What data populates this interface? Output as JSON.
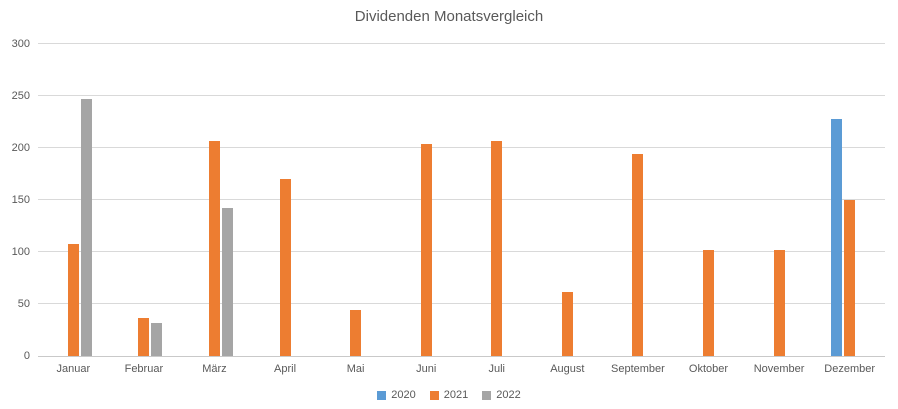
{
  "title": "Dividenden Monatsvergleich",
  "colors": {
    "series_2020": "#5B9BD5",
    "series_2021": "#ED7D31",
    "series_2022": "#A5A5A5",
    "text": "#595959",
    "gridline": "#D9D9D9"
  },
  "chart_data": {
    "type": "bar",
    "title": "Dividenden Monatsvergleich",
    "categories": [
      "Januar",
      "Februar",
      "März",
      "April",
      "Mai",
      "Juni",
      "Juli",
      "August",
      "September",
      "Oktober",
      "November",
      "Dezember"
    ],
    "series": [
      {
        "name": "2020",
        "color": "#5B9BD5",
        "values": [
          null,
          null,
          null,
          null,
          null,
          null,
          null,
          null,
          null,
          null,
          null,
          228
        ]
      },
      {
        "name": "2021",
        "color": "#ED7D31",
        "values": [
          108,
          37,
          207,
          170,
          44,
          204,
          207,
          62,
          194,
          102,
          102,
          150
        ]
      },
      {
        "name": "2022",
        "color": "#A5A5A5",
        "values": [
          247,
          32,
          142,
          null,
          null,
          null,
          null,
          null,
          null,
          null,
          null,
          null
        ]
      }
    ],
    "xlabel": "",
    "ylabel": "",
    "ylim": [
      0,
      300
    ],
    "yticks": [
      0,
      50,
      100,
      150,
      200,
      250,
      300
    ],
    "grid": true,
    "legend_position": "bottom"
  }
}
